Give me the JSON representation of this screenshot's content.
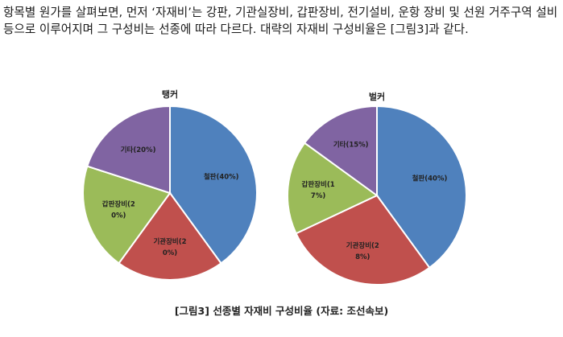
{
  "document": {
    "paragraph": "항목별 원가를 살펴보면, 먼저 ‘자재비’는 강판, 기관실장비, 갑판장비, 전기설비, 운항 장비 및 선원 거주구역 설비 등으로 이루어지며 그 구성비는 선종에 따라 다르다. 대략의 자재비 구성비율은 [그림3]과 같다.",
    "figure_caption": "[그림3] 선종별 자재비 구성비율 (자료: 조선속보)"
  },
  "chart_data": [
    {
      "type": "pie",
      "title": "탱커",
      "categories": [
        "철판",
        "기관장비",
        "갑판장비",
        "기타"
      ],
      "values": [
        40,
        20,
        20,
        20
      ],
      "labels": [
        [
          "철판(40%)"
        ],
        [
          "기관장비(2",
          "0%)"
        ],
        [
          "갑판장비(2",
          "0%)"
        ],
        [
          "기타(20%)"
        ]
      ],
      "colors": [
        "#4f81bd",
        "#c0504d",
        "#9bbb59",
        "#8064a2"
      ],
      "start_angle": "12 o'clock",
      "direction": "clockwise"
    },
    {
      "type": "pie",
      "title": "벌커",
      "categories": [
        "철판",
        "기관장비",
        "갑판장비",
        "기타"
      ],
      "values": [
        40,
        28,
        17,
        15
      ],
      "labels": [
        [
          "철판(40%)"
        ],
        [
          "기관장비(2",
          "8%)"
        ],
        [
          "갑판장비(1",
          "7%)"
        ],
        [
          "기타(15%)"
        ]
      ],
      "colors": [
        "#4f81bd",
        "#c0504d",
        "#9bbb59",
        "#8064a2"
      ],
      "start_angle": "12 o'clock",
      "direction": "clockwise"
    }
  ]
}
